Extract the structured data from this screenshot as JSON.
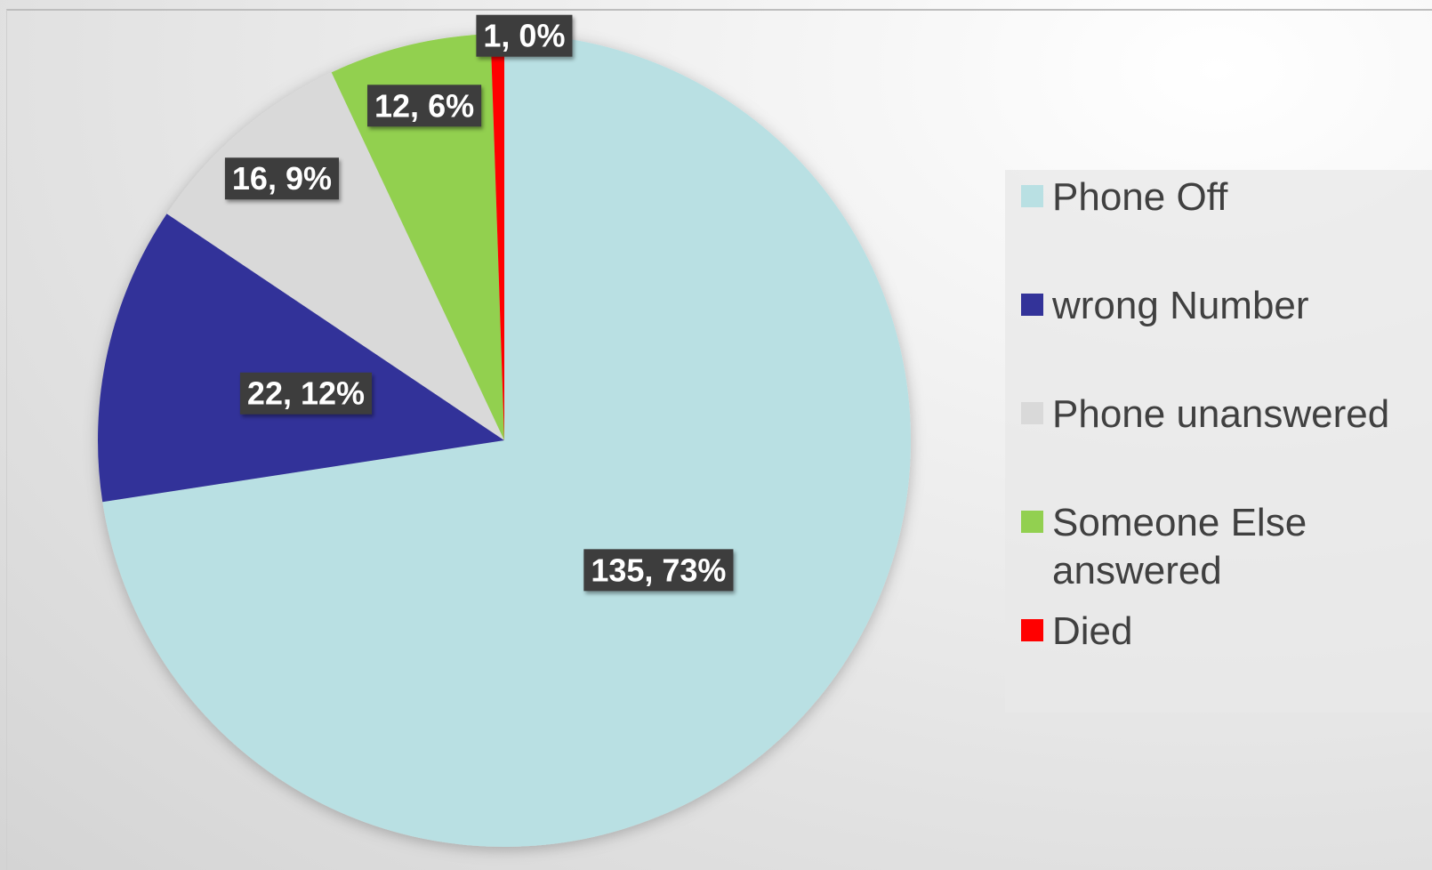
{
  "chart_data": {
    "type": "pie",
    "categories": [
      "Phone Off",
      "wrong Number",
      "Phone unanswered",
      "Someone Else answered",
      "Died"
    ],
    "values": [
      135,
      22,
      16,
      12,
      1
    ],
    "value_labels": [
      "135, 73%",
      "22, 12%",
      "16, 9%",
      "12, 6%",
      "1, 0%"
    ],
    "colors": [
      "#b9e0e3",
      "#333399",
      "#d9d9d9",
      "#92d050",
      "#ff0000"
    ],
    "legend": "right"
  }
}
